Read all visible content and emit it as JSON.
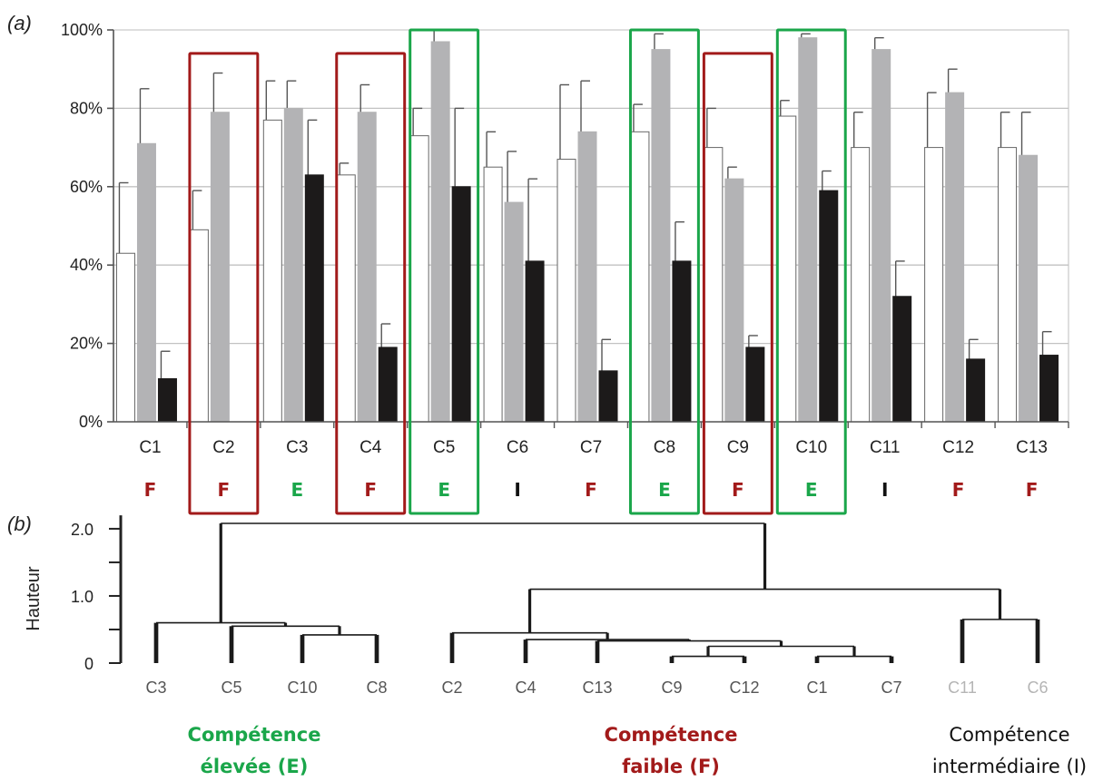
{
  "colors": {
    "E": "#1aa64a",
    "F": "#a21a1a",
    "I": "#111111",
    "leaf_muted": "#b5b5b5",
    "leaf_normal": "#555555",
    "series": [
      "#ffffff",
      "#b3b3b5",
      "#1c1a1a"
    ]
  },
  "chart_data": [
    {
      "type": "bar",
      "panel_label": "(a)",
      "categories": [
        "C1",
        "C2",
        "C3",
        "C4",
        "C5",
        "C6",
        "C7",
        "C8",
        "C9",
        "C10",
        "C11",
        "C12",
        "C13"
      ],
      "series": [
        {
          "values": [
            43,
            49,
            77,
            63,
            73,
            65,
            67,
            74,
            70,
            78,
            70,
            70,
            70
          ],
          "errors": [
            18,
            10,
            10,
            3,
            7,
            9,
            19,
            7,
            10,
            4,
            9,
            14,
            9
          ],
          "color": "white"
        },
        {
          "values": [
            71,
            79,
            80,
            79,
            97,
            56,
            74,
            95,
            62,
            98,
            95,
            84,
            68
          ],
          "errors": [
            14,
            10,
            7,
            7,
            3,
            13,
            13,
            4,
            3,
            1,
            3,
            6,
            11
          ],
          "color": "gray"
        },
        {
          "values": [
            11,
            0,
            63,
            19,
            60,
            41,
            13,
            41,
            19,
            59,
            32,
            16,
            17
          ],
          "errors": [
            7,
            0,
            14,
            6,
            20,
            21,
            8,
            10,
            3,
            5,
            9,
            5,
            6
          ],
          "color": "black"
        }
      ],
      "yticks": [
        "0%",
        "20%",
        "40%",
        "60%",
        "80%",
        "100%"
      ],
      "ylim": [
        0,
        100
      ],
      "grid": true,
      "group_labels": [
        "F",
        "F",
        "E",
        "F",
        "E",
        "I",
        "F",
        "E",
        "F",
        "E",
        "I",
        "F",
        "F"
      ],
      "highlight_boxes": [
        {
          "category": "C2",
          "group": "F"
        },
        {
          "category": "C4",
          "group": "F"
        },
        {
          "category": "C5",
          "group": "E"
        },
        {
          "category": "C8",
          "group": "E"
        },
        {
          "category": "C9",
          "group": "F"
        },
        {
          "category": "C10",
          "group": "E"
        }
      ]
    },
    {
      "type": "dendrogram",
      "panel_label": "(b)",
      "ylabel": "Hauteur",
      "yticks": [
        "0",
        "1.0",
        "2.0"
      ],
      "ylim": [
        0,
        2.2
      ],
      "leaves": [
        {
          "label": "C3",
          "muted": false
        },
        {
          "label": "C5",
          "muted": false
        },
        {
          "label": "C10",
          "muted": false
        },
        {
          "label": "C8",
          "muted": false
        },
        {
          "label": "C2",
          "muted": false
        },
        {
          "label": "C4",
          "muted": false
        },
        {
          "label": "C13",
          "muted": false
        },
        {
          "label": "C9",
          "muted": false
        },
        {
          "label": "C12",
          "muted": false
        },
        {
          "label": "C1",
          "muted": false
        },
        {
          "label": "C7",
          "muted": false
        },
        {
          "label": "C11",
          "muted": true
        },
        {
          "label": "C6",
          "muted": true
        }
      ],
      "merges": [
        {
          "a": "C10",
          "b": "C8",
          "height": 0.42
        },
        {
          "a": "C5",
          "b": "C10+C8",
          "height": 0.55
        },
        {
          "a": "C3",
          "b": "C5+C10+C8",
          "height": 0.6
        },
        {
          "a": "C9",
          "b": "C12",
          "height": 0.1
        },
        {
          "a": "C1",
          "b": "C7",
          "height": 0.1
        },
        {
          "a": "C9+C12",
          "b": "C1+C7",
          "height": 0.25
        },
        {
          "a": "C13",
          "b": "C9-C7",
          "height": 0.33
        },
        {
          "a": "C4",
          "b": "C13-C7",
          "height": 0.35
        },
        {
          "a": "C2",
          "b": "C4-C7",
          "height": 0.45
        },
        {
          "a": "C11",
          "b": "C6",
          "height": 0.65
        },
        {
          "a": "C2-C7",
          "b": "C11+C6",
          "height": 1.1
        },
        {
          "a": "C3-C8",
          "b": "C2-C6",
          "height": 2.08
        }
      ],
      "clusters": [
        {
          "lines": [
            "Compétence",
            "élevée (E)"
          ],
          "group": "E"
        },
        {
          "lines": [
            "Compétence",
            "faible (F)"
          ],
          "group": "F"
        },
        {
          "lines": [
            "Compétence",
            "intermédiaire  (I)"
          ],
          "group": "I"
        }
      ]
    }
  ]
}
